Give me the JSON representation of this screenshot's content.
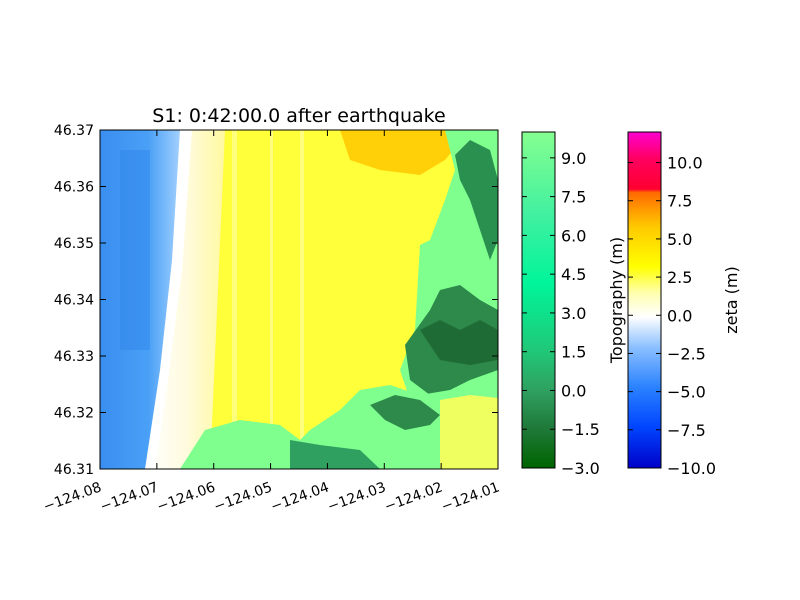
{
  "chart_data": {
    "type": "heatmap",
    "title": "S1: 0:42:00.0 after earthquake",
    "xlabel": "",
    "ylabel": "",
    "xlim": [
      -124.08,
      -124.01
    ],
    "ylim": [
      46.31,
      46.37
    ],
    "x_ticks": [
      "−124.08",
      "−124.07",
      "−124.06",
      "−124.05",
      "−124.04",
      "−124.03",
      "−124.02",
      "−124.01"
    ],
    "y_ticks": [
      "46.31",
      "46.32",
      "46.33",
      "46.34",
      "46.35",
      "46.36",
      "46.37"
    ],
    "grid": false,
    "colorbars": [
      {
        "label": "Topography (m)",
        "range": [
          -3.0,
          10.0
        ],
        "ticks": [
          "−3.0",
          "−1.5",
          "0.0",
          "1.5",
          "3.0",
          "4.5",
          "6.0",
          "7.5",
          "9.0"
        ],
        "tick_values": [
          -3.0,
          -1.5,
          0.0,
          1.5,
          3.0,
          4.5,
          6.0,
          7.5,
          9.0
        ],
        "colors": [
          "#006400",
          "#2e8b57",
          "#3cb371",
          "#00fa9a",
          "#40e8a0",
          "#7fff8e"
        ]
      },
      {
        "label": "zeta (m)",
        "range": [
          -10.0,
          12.0
        ],
        "ticks": [
          "−10.0",
          "−7.5",
          "−5.0",
          "−2.5",
          "0.0",
          "2.5",
          "5.0",
          "7.5",
          "10.0"
        ],
        "tick_values": [
          -10.0,
          -7.5,
          -5.0,
          -2.5,
          0.0,
          2.5,
          5.0,
          7.5,
          10.0
        ],
        "colors": [
          "#0000cc",
          "#0066ff",
          "#66aaff",
          "#ffffff",
          "#ffff00",
          "#ffaa00",
          "#ff6600",
          "#ff0033",
          "#ff00cc"
        ]
      }
    ]
  }
}
